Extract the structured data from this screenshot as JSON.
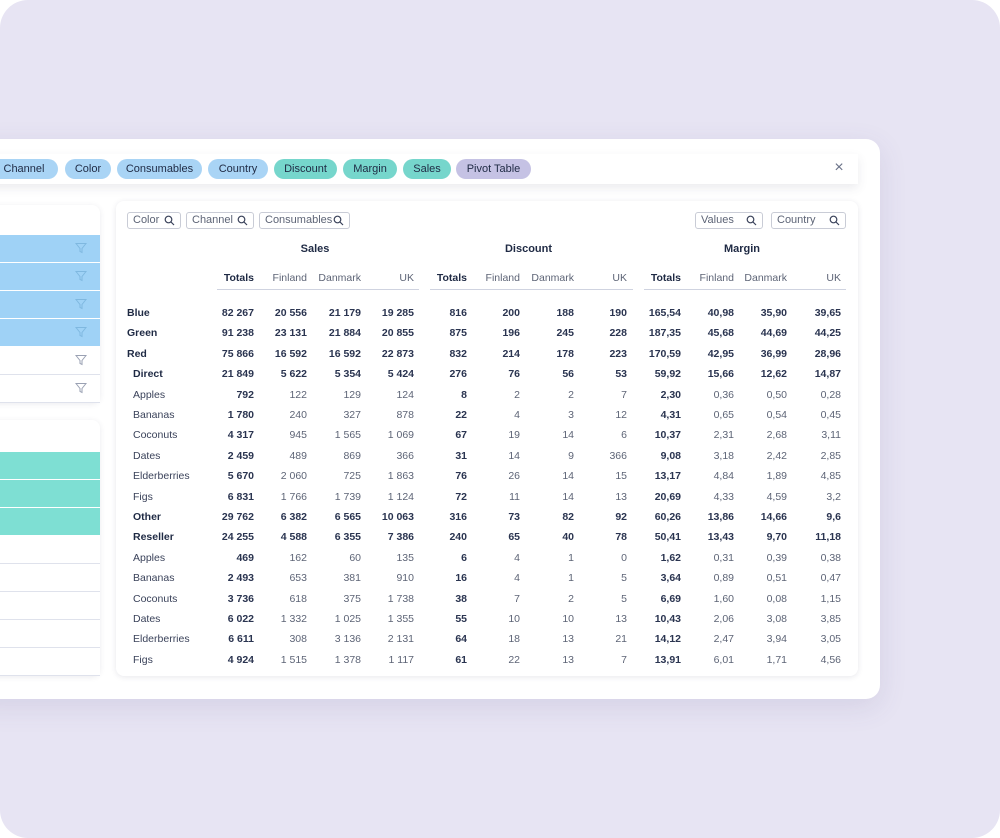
{
  "chips": [
    {
      "label": "Channel",
      "color": "blue"
    },
    {
      "label": "Color",
      "color": "blue"
    },
    {
      "label": "Consumables",
      "color": "blue"
    },
    {
      "label": "Country",
      "color": "blue"
    },
    {
      "label": "Discount",
      "color": "teal"
    },
    {
      "label": "Margin",
      "color": "teal"
    },
    {
      "label": "Sales",
      "color": "teal"
    },
    {
      "label": "Pivot Table",
      "color": "purple"
    }
  ],
  "close_icon": "close-icon",
  "colors": {
    "blue_chip": "#a9d4f5",
    "teal_chip": "#76d6cc",
    "purple_chip": "#c5c2e4",
    "background": "#e7e4f3"
  },
  "filters_left": [
    {
      "label": "Color"
    },
    {
      "label": "Channel"
    },
    {
      "label": "Consumables"
    }
  ],
  "filters_right": [
    {
      "label": "Values"
    },
    {
      "label": "Country"
    }
  ],
  "groups": [
    "Sales",
    "Discount",
    "Margin"
  ],
  "subheaders": [
    "Totals",
    "Finland",
    "Danmark",
    "UK"
  ],
  "rows": [
    {
      "label": "Blue",
      "level": 0,
      "bold": true,
      "values": [
        "82 267",
        "20 556",
        "21 179",
        "19 285",
        "816",
        "200",
        "188",
        "190",
        "165,54",
        "40,98",
        "35,90",
        "39,65"
      ]
    },
    {
      "label": "Green",
      "level": 0,
      "bold": true,
      "values": [
        "91 238",
        "23 131",
        "21 884",
        "20 855",
        "875",
        "196",
        "245",
        "228",
        "187,35",
        "45,68",
        "44,69",
        "44,25"
      ]
    },
    {
      "label": "Red",
      "level": 0,
      "bold": true,
      "values": [
        "75 866",
        "16 592",
        "16 592",
        "22 873",
        "832",
        "214",
        "178",
        "223",
        "170,59",
        "42,95",
        "36,99",
        "28,96"
      ]
    },
    {
      "label": "Direct",
      "level": 1,
      "bold": true,
      "values": [
        "21 849",
        "5 622",
        "5 354",
        "5 424",
        "276",
        "76",
        "56",
        "53",
        "59,92",
        "15,66",
        "12,62",
        "14,87"
      ]
    },
    {
      "label": "Apples",
      "level": 1,
      "bold": false,
      "values": [
        "792",
        "122",
        "129",
        "124",
        "8",
        "2",
        "2",
        "7",
        "2,30",
        "0,36",
        "0,50",
        "0,28"
      ]
    },
    {
      "label": "Bananas",
      "level": 1,
      "bold": false,
      "values": [
        "1 780",
        "240",
        "327",
        "878",
        "22",
        "4",
        "3",
        "12",
        "4,31",
        "0,65",
        "0,54",
        "0,45"
      ]
    },
    {
      "label": "Coconuts",
      "level": 1,
      "bold": false,
      "values": [
        "4 317",
        "945",
        "1 565",
        "1 069",
        "67",
        "19",
        "14",
        "6",
        "10,37",
        "2,31",
        "2,68",
        "3,11"
      ]
    },
    {
      "label": "Dates",
      "level": 1,
      "bold": false,
      "values": [
        "2 459",
        "489",
        "869",
        "366",
        "31",
        "14",
        "9",
        "366",
        "9,08",
        "3,18",
        "2,42",
        "2,85"
      ]
    },
    {
      "label": "Elderberries",
      "level": 1,
      "bold": false,
      "values": [
        "5 670",
        "2 060",
        "725",
        "1 863",
        "76",
        "26",
        "14",
        "15",
        "13,17",
        "4,84",
        "1,89",
        "4,85"
      ]
    },
    {
      "label": "Figs",
      "level": 1,
      "bold": false,
      "values": [
        "6 831",
        "1 766",
        "1 739",
        "1 124",
        "72",
        "11",
        "14",
        "13",
        "20,69",
        "4,33",
        "4,59",
        "3,2"
      ]
    },
    {
      "label": "Other",
      "level": 1,
      "bold": true,
      "values": [
        "29 762",
        "6 382",
        "6 565",
        "10 063",
        "316",
        "73",
        "82",
        "92",
        "60,26",
        "13,86",
        "14,66",
        "9,6"
      ]
    },
    {
      "label": "Reseller",
      "level": 1,
      "bold": true,
      "values": [
        "24 255",
        "4 588",
        "6 355",
        "7 386",
        "240",
        "65",
        "40",
        "78",
        "50,41",
        "13,43",
        "9,70",
        "11,18"
      ]
    },
    {
      "label": "Apples",
      "level": 1,
      "bold": false,
      "values": [
        "469",
        "162",
        "60",
        "135",
        "6",
        "4",
        "1",
        "0",
        "1,62",
        "0,31",
        "0,39",
        "0,38"
      ]
    },
    {
      "label": "Bananas",
      "level": 1,
      "bold": false,
      "values": [
        "2 493",
        "653",
        "381",
        "910",
        "16",
        "4",
        "1",
        "5",
        "3,64",
        "0,89",
        "0,51",
        "0,47"
      ]
    },
    {
      "label": "Coconuts",
      "level": 1,
      "bold": false,
      "values": [
        "3 736",
        "618",
        "375",
        "1 738",
        "38",
        "7",
        "2",
        "5",
        "6,69",
        "1,60",
        "0,08",
        "1,15"
      ]
    },
    {
      "label": "Dates",
      "level": 1,
      "bold": false,
      "values": [
        "6 022",
        "1 332",
        "1 025",
        "1 355",
        "55",
        "10",
        "10",
        "13",
        "10,43",
        "2,06",
        "3,08",
        "3,85"
      ]
    },
    {
      "label": "Elderberries",
      "level": 1,
      "bold": false,
      "values": [
        "6 611",
        "308",
        "3 136",
        "2 131",
        "64",
        "18",
        "13",
        "21",
        "14,12",
        "2,47",
        "3,94",
        "3,05"
      ]
    },
    {
      "label": "Figs",
      "level": 1,
      "bold": false,
      "values": [
        "4 924",
        "1 515",
        "1 378",
        "1 117",
        "61",
        "22",
        "13",
        "7",
        "13,91",
        "6,01",
        "1,71",
        "4,56"
      ]
    }
  ]
}
